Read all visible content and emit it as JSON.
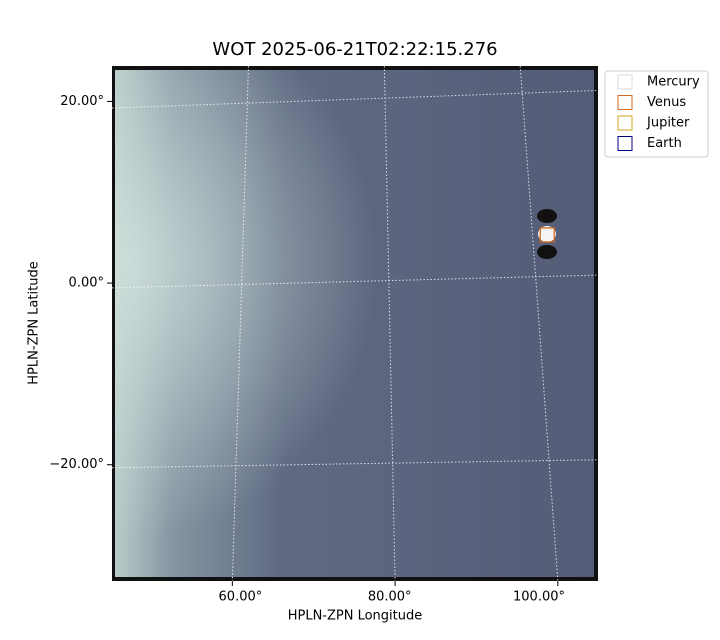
{
  "chart_data": {
    "type": "image",
    "title": "WOT 2025-06-21T02:22:15.276",
    "x_label": "HPLN-ZPN Longitude",
    "y_label": "HPLN-ZPN Latitude",
    "xlim": [
      42.8,
      107.9
    ],
    "ylim": [
      -32.8,
      23.9
    ],
    "xticks": [
      {
        "value": 60,
        "label": "60.00°"
      },
      {
        "value": 80,
        "label": "80.00°"
      },
      {
        "value": 100,
        "label": "100.00°"
      }
    ],
    "yticks": [
      {
        "value": -20,
        "label": "−20.00°"
      },
      {
        "value": 0,
        "label": "0.00°"
      },
      {
        "value": 20,
        "label": "20.00°"
      }
    ],
    "grid": true,
    "legend": "upper right outside",
    "series": [
      {
        "name": "Mercury",
        "color": "#d8d8d8",
        "x": [],
        "values": []
      },
      {
        "name": "Venus",
        "color": "#d2691e",
        "x": [
          101.1
        ],
        "values": [
          5.3
        ]
      },
      {
        "name": "Jupiter",
        "color": "#daa520",
        "x": [],
        "values": []
      },
      {
        "name": "Earth",
        "color": "#000080",
        "x": [],
        "values": []
      }
    ]
  }
}
